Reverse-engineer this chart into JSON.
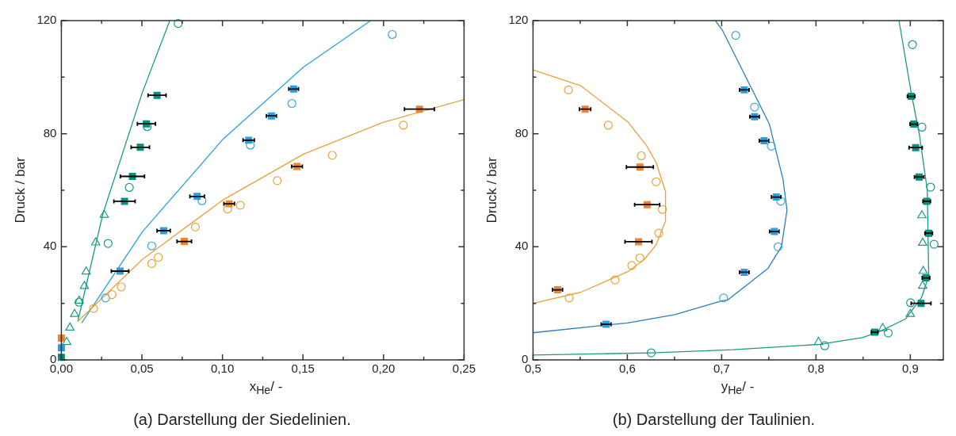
{
  "chart_data": [
    {
      "type": "scatter",
      "title": "(a) Darstellung der Siedelinien.",
      "xlabel": "x$_{He}$/ -",
      "ylabel": "Druck / bar",
      "xlim": [
        0,
        0.25
      ],
      "ylim": [
        0,
        120
      ],
      "xticks": [
        {
          "value": 0,
          "label": "0,00"
        },
        {
          "value": 0.025,
          "label": null
        },
        {
          "value": 0.05,
          "label": "0,05"
        },
        {
          "value": 0.075,
          "label": null
        },
        {
          "value": 0.1,
          "label": "0,10"
        },
        {
          "value": 0.125,
          "label": null
        },
        {
          "value": 0.15,
          "label": "0,15"
        },
        {
          "value": 0.175,
          "label": null
        },
        {
          "value": 0.2,
          "label": "0,20"
        },
        {
          "value": 0.225,
          "label": null
        },
        {
          "value": 0.25,
          "label": "0,25"
        }
      ],
      "yticks": [
        0,
        {
          "value": 20,
          "label": null
        },
        40,
        {
          "value": 60,
          "label": null
        },
        80,
        {
          "value": 100,
          "label": null
        },
        120
      ],
      "series": [
        {
          "type": "line",
          "color": "#1a9a85",
          "x": [
            0.0102,
            0.0258,
            0.0504,
            0.0673
          ],
          "values": [
            13.6,
            51.7,
            94.8,
            120
          ]
        },
        {
          "type": "line",
          "color": "#2aa2dd",
          "x": [
            0.0126,
            0.0504,
            0.1004,
            0.1504,
            0.192
          ],
          "values": [
            13.1,
            45.4,
            78.1,
            103.6,
            120
          ]
        },
        {
          "type": "line",
          "color": "#e6a23c",
          "x": [
            0.0102,
            0.0504,
            0.1004,
            0.1504,
            0.1997,
            0.25
          ],
          "values": [
            13.6,
            35.6,
            56.6,
            72.8,
            84.0,
            92.1
          ]
        },
        {
          "type": "scatter",
          "marker": "triangle",
          "color": "#1a9a85",
          "x": [
            0.0266,
            0.0213,
            0.0154,
            0.0143,
            0.011,
            0.0082,
            0.0053,
            0.0033
          ],
          "values": [
            51.3,
            41.5,
            31.2,
            26.1,
            20.9,
            16.2,
            11.4,
            6.3
          ]
        },
        {
          "type": "scatter",
          "marker": "circle",
          "color": "#1a9a85",
          "x": [
            0.0725,
            0.0533,
            0.0422,
            0.029,
            0.011
          ],
          "values": [
            119.0,
            82.5,
            61.0,
            41.2,
            20.4
          ]
        },
        {
          "type": "scatter",
          "marker": "circle",
          "color": "#3aa6e0",
          "x": [
            0.2054,
            0.1431,
            0.1173,
            0.0873,
            0.0561,
            0.0274
          ],
          "values": [
            115.1,
            90.7,
            76.0,
            56.3,
            40.3,
            21.9
          ]
        },
        {
          "type": "scatter",
          "marker": "circle",
          "color": "#e6a23c",
          "x": [
            0.2123,
            0.1682,
            0.134,
            0.1111,
            0.1032,
            0.0832,
            0.0602,
            0.0561,
            0.0372,
            0.0315,
            0.02
          ],
          "values": [
            83.0,
            72.4,
            63.4,
            54.7,
            53.4,
            47.0,
            36.3,
            34.1,
            25.8,
            23.1,
            18.2
          ]
        },
        {
          "type": "scatter",
          "marker": "square",
          "color": "#00917b",
          "x": [
            0.0594,
            0.0528,
            0.049,
            0.0441,
            0.0392,
            0
          ],
          "values": [
            93.6,
            83.5,
            75.2,
            64.9,
            56.1,
            0.9
          ],
          "xerrors": [
            0.0056,
            0.0056,
            0.0057,
            0.0075,
            0.0066,
            null
          ]
        },
        {
          "type": "scatter",
          "marker": "square",
          "color": "#2a9fdc",
          "x": [
            0.0364,
            0.0635,
            0.0843,
            0.1163,
            0.1304,
            0.1442,
            0
          ],
          "values": [
            31.4,
            45.7,
            57.8,
            77.7,
            86.3,
            95.8,
            4.3
          ],
          "xerrors": [
            0.0054,
            0.0041,
            0.0045,
            0.0035,
            0.0031,
            0.003,
            null
          ]
        },
        {
          "type": "scatter",
          "marker": "square",
          "color": "#f08232",
          "x": [
            0.0763,
            0.1042,
            0.1463,
            0.2223,
            0
          ],
          "values": [
            41.9,
            55.2,
            68.4,
            88.7,
            7.7
          ],
          "xerrors": [
            0.0045,
            0.0033,
            0.0033,
            0.0093,
            null
          ]
        }
      ]
    },
    {
      "type": "scatter",
      "title": "(b) Darstellung der Taulinien.",
      "xlabel": "y$_{He}$/ -",
      "ylabel": "Druck / bar",
      "xlim": [
        0.5,
        0.935
      ],
      "ylim": [
        0,
        120
      ],
      "xticks": [
        {
          "value": 0.5,
          "label": "0,5"
        },
        {
          "value": 0.55,
          "label": null
        },
        {
          "value": 0.6,
          "label": "0,6"
        },
        {
          "value": 0.65,
          "label": null
        },
        {
          "value": 0.7,
          "label": "0,7"
        },
        {
          "value": 0.75,
          "label": null
        },
        {
          "value": 0.8,
          "label": "0,8"
        },
        {
          "value": 0.85,
          "label": null
        },
        {
          "value": 0.9,
          "label": "0,9"
        }
      ],
      "yticks": [
        0,
        {
          "value": 20,
          "label": null
        },
        40,
        {
          "value": 60,
          "label": null
        },
        80,
        {
          "value": 100,
          "label": null
        },
        120
      ],
      "series": [
        {
          "type": "line",
          "color": "#e6a23c",
          "x": [
            0.5,
            0.5504,
            0.6004,
            0.6204,
            0.6305,
            0.6405,
            0.6405,
            0.6305,
            0.6176,
            0.6004,
            0.5504,
            0.5
          ],
          "values": [
            102.6,
            97.0,
            84.2,
            75.8,
            69.8,
            59.5,
            49.2,
            40.7,
            35.4,
            31.2,
            23.9,
            20.0
          ]
        },
        {
          "type": "line",
          "color": "#2c7fb8",
          "x": [
            0.5,
            0.6004,
            0.6505,
            0.7006,
            0.7063,
            0.7492,
            0.7635,
            0.7693,
            0.765,
            0.7506,
            0.7006,
            0.6934
          ],
          "values": [
            9.6,
            13.1,
            16.0,
            20.9,
            21.2,
            32.4,
            40.2,
            53.0,
            63.9,
            83.4,
            116.7,
            120
          ]
        },
        {
          "type": "line",
          "color": "#1a9a85",
          "x": [
            0.5,
            0.626,
            0.712,
            0.804,
            0.849,
            0.866,
            0.895,
            0.912,
            0.9195,
            0.918,
            0.9095,
            0.901,
            0.888
          ],
          "values": [
            1.7,
            2.5,
            3.6,
            5.5,
            7.9,
            9.8,
            14.5,
            22.1,
            29.7,
            60.0,
            80.0,
            94.4,
            120
          ]
        },
        {
          "type": "scatter",
          "marker": "triangle",
          "color": "#1a9a85",
          "x": [
            0.9123,
            0.9131,
            0.9137,
            0.9131,
            0.9,
            0.8708,
            0.8027
          ],
          "values": [
            51.1,
            41.4,
            31.4,
            26.2,
            16.2,
            11.2,
            6.3
          ]
        },
        {
          "type": "scatter",
          "marker": "circle",
          "color": "#1a9a85",
          "x": [
            0.9023,
            0.9123,
            0.9215,
            0.9252,
            0.9003,
            0.8766,
            0.8093,
            0.6253
          ],
          "values": [
            111.5,
            82.3,
            61.1,
            40.9,
            20.2,
            9.5,
            5.0,
            2.5
          ]
        },
        {
          "type": "scatter",
          "marker": "circle",
          "color": "#3aa6e0",
          "x": [
            0.7149,
            0.7349,
            0.7526,
            0.7627,
            0.7598,
            0.702
          ],
          "values": [
            114.8,
            89.4,
            75.6,
            56.1,
            40.0,
            21.9
          ]
        },
        {
          "type": "scatter",
          "marker": "circle",
          "color": "#e6a23c",
          "x": [
            0.5375,
            0.5798,
            0.6148,
            0.6305,
            0.6371,
            0.6333,
            0.6133,
            0.6047,
            0.587,
            0.5384
          ],
          "values": [
            95.5,
            83.0,
            72.2,
            63.0,
            53.2,
            44.8,
            36.1,
            33.4,
            28.3,
            21.9
          ]
        },
        {
          "type": "scatter",
          "marker": "square",
          "color": "#00917b",
          "x": [
            0.9009,
            0.9037,
            0.9057,
            0.9094,
            0.9174,
            0.9195,
            0.9166,
            0.9114,
            0.8622
          ],
          "values": [
            93.2,
            83.4,
            75.1,
            64.7,
            56.1,
            44.8,
            29.0,
            20.0,
            9.8
          ],
          "xerrors": [
            0.004,
            0.004,
            0.007,
            0.005,
            0.004,
            0.004,
            0.004,
            0.0105,
            0.0035
          ]
        },
        {
          "type": "scatter",
          "marker": "square",
          "color": "#2a9fdc",
          "x": [
            0.724,
            0.7349,
            0.7449,
            0.7578,
            0.7558,
            0.724,
            0.5775
          ],
          "values": [
            95.5,
            86.0,
            77.5,
            57.6,
            45.4,
            31.0,
            12.6
          ],
          "xerrors": [
            0.005,
            0.005,
            0.005,
            0.005,
            0.005,
            0.005,
            0.0052
          ]
        },
        {
          "type": "scatter",
          "marker": "square",
          "color": "#f08232",
          "x": [
            0.5552,
            0.6133,
            0.621,
            0.6118,
            0.526
          ],
          "values": [
            88.7,
            68.2,
            54.9,
            41.8,
            24.8
          ],
          "xerrors": [
            0.006,
            0.0143,
            0.0133,
            0.0143,
            0.0053
          ]
        }
      ]
    }
  ]
}
